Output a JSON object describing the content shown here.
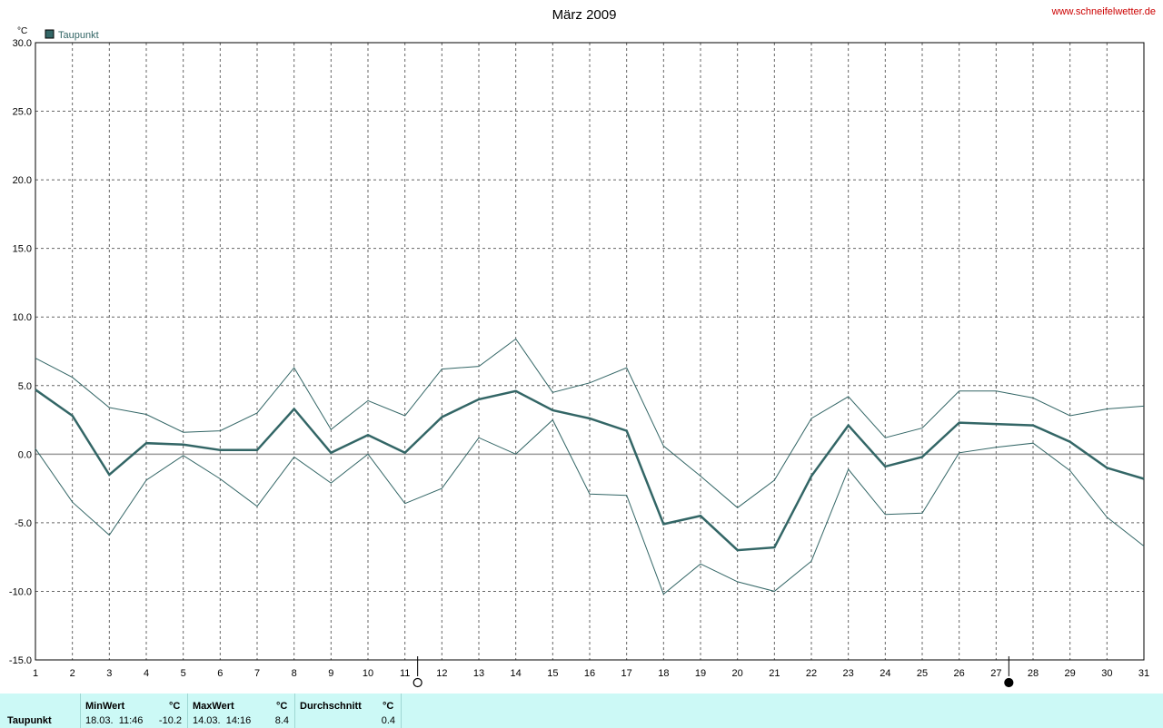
{
  "header": {
    "title": "März 2009",
    "website": "www.schneifelwetter.de",
    "unit": "°C"
  },
  "legend": {
    "label": "Taupunkt",
    "color": "#336666"
  },
  "colors": {
    "series": "#336666",
    "grid": "#666666",
    "zero_line": "#999999",
    "website": "#cc0000"
  },
  "chart_data": {
    "type": "line",
    "title": "März 2009",
    "ylabel": "°C",
    "xlabel": "",
    "ylim": [
      -15,
      30
    ],
    "y_ticks": [
      "30.0",
      "25.0",
      "20.0",
      "15.0",
      "10.0",
      "5.0",
      "0.0",
      "-5.0",
      "-10.0",
      "-15.0"
    ],
    "x": [
      1,
      2,
      3,
      4,
      5,
      6,
      7,
      8,
      9,
      10,
      11,
      12,
      13,
      14,
      15,
      16,
      17,
      18,
      19,
      20,
      21,
      22,
      23,
      24,
      25,
      26,
      27,
      28,
      29,
      30,
      31
    ],
    "grid": true,
    "legend_position": "top-left",
    "series": [
      {
        "name": "Taupunkt",
        "role": "mean",
        "values": [
          4.7,
          2.8,
          -1.5,
          0.8,
          0.7,
          0.3,
          0.3,
          3.3,
          0.1,
          1.4,
          0.1,
          2.7,
          4.0,
          4.6,
          3.2,
          2.6,
          1.7,
          -5.1,
          -4.5,
          -7.0,
          -6.8,
          -1.6,
          2.1,
          -0.9,
          -0.2,
          2.3,
          2.2,
          2.1,
          0.9,
          -1.0,
          -1.8
        ]
      },
      {
        "role": "max",
        "values": [
          7.0,
          5.6,
          3.4,
          2.9,
          1.6,
          1.7,
          3.0,
          6.3,
          1.8,
          3.9,
          2.8,
          6.2,
          6.4,
          8.4,
          4.5,
          5.2,
          6.3,
          0.6,
          -1.6,
          -3.9,
          -1.9,
          2.6,
          4.2,
          1.2,
          1.9,
          4.6,
          4.6,
          4.1,
          2.8,
          3.3,
          3.5
        ]
      },
      {
        "role": "min",
        "values": [
          0.4,
          -3.5,
          -5.9,
          -1.9,
          -0.1,
          -1.8,
          -3.8,
          -0.2,
          -2.1,
          0.0,
          -3.6,
          -2.5,
          1.2,
          0.0,
          2.5,
          -2.9,
          -3.0,
          -10.2,
          -8.0,
          -9.3,
          -10.0,
          -7.8,
          -1.1,
          -4.4,
          -4.3,
          0.1,
          0.5,
          0.8,
          -1.2,
          -4.6,
          -6.7
        ]
      }
    ],
    "moon_phases": [
      {
        "day": 11,
        "phase": "full-moon"
      },
      {
        "day": 27,
        "phase": "new-moon"
      }
    ]
  },
  "stats": {
    "row_label": "Taupunkt",
    "min": {
      "header": "MinWert",
      "unit": "°C",
      "date": "18.03.  11:46",
      "value": "-10.2"
    },
    "max": {
      "header": "MaxWert",
      "unit": "°C",
      "date": "14.03.  14:16",
      "value": "8.4"
    },
    "avg": {
      "header": "Durchschnitt",
      "unit": "°C",
      "value": "0.4"
    }
  }
}
